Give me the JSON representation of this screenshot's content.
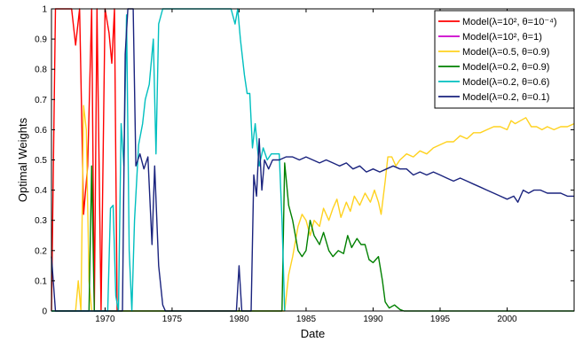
{
  "chart_data": {
    "type": "line",
    "xlabel": "Date",
    "ylabel": "Optimal Weights",
    "xlim": [
      1966,
      2005
    ],
    "ylim": [
      0,
      1
    ],
    "x_ticks": [
      1970,
      1975,
      1980,
      1985,
      1990,
      1995,
      2000
    ],
    "y_ticks": [
      0,
      0.1,
      0.2,
      0.3,
      0.4,
      0.5,
      0.6,
      0.7,
      0.8,
      0.9,
      1
    ],
    "grid": false,
    "legend_position": "top-right",
    "series": [
      {
        "name": "Model(λ=10², θ=10⁻⁴)",
        "color": "#ff0000",
        "points": [
          [
            1966,
            0
          ],
          [
            1966.3,
            1
          ],
          [
            1967.5,
            1
          ],
          [
            1967.8,
            0.88
          ],
          [
            1968.1,
            1
          ],
          [
            1968.4,
            0.32
          ],
          [
            1968.7,
            0.48
          ],
          [
            1969,
            1
          ],
          [
            1969.2,
            0
          ],
          [
            1969.4,
            1
          ],
          [
            1969.7,
            0
          ],
          [
            1970,
            1
          ],
          [
            1970.3,
            0.92
          ],
          [
            1970.5,
            0.82
          ],
          [
            1970.7,
            1
          ],
          [
            1970.9,
            0
          ]
        ]
      },
      {
        "name": "Model(λ=10², θ=1)",
        "color": "#cc00cc",
        "points": []
      },
      {
        "name": "Model(λ=0.5, θ=0.9)",
        "color": "#ffd21f",
        "points": [
          [
            1966,
            0
          ],
          [
            1967.8,
            0
          ],
          [
            1968,
            0.1
          ],
          [
            1968.2,
            0
          ],
          [
            1968.4,
            0.68
          ],
          [
            1968.6,
            0.6
          ],
          [
            1968.8,
            0.1
          ],
          [
            1969,
            0
          ],
          [
            1983.4,
            0
          ],
          [
            1983.7,
            0.12
          ],
          [
            1984,
            0.18
          ],
          [
            1984.4,
            0.28
          ],
          [
            1984.7,
            0.32
          ],
          [
            1985,
            0.3
          ],
          [
            1985.3,
            0.25
          ],
          [
            1985.6,
            0.3
          ],
          [
            1986,
            0.28
          ],
          [
            1986.3,
            0.34
          ],
          [
            1986.7,
            0.3
          ],
          [
            1987,
            0.34
          ],
          [
            1987.3,
            0.37
          ],
          [
            1987.6,
            0.31
          ],
          [
            1988,
            0.36
          ],
          [
            1988.3,
            0.33
          ],
          [
            1988.6,
            0.38
          ],
          [
            1989,
            0.35
          ],
          [
            1989.4,
            0.39
          ],
          [
            1989.8,
            0.36
          ],
          [
            1990.1,
            0.4
          ],
          [
            1990.4,
            0.36
          ],
          [
            1990.6,
            0.32
          ],
          [
            1990.9,
            0.43
          ],
          [
            1991.1,
            0.51
          ],
          [
            1991.4,
            0.51
          ],
          [
            1991.7,
            0.48
          ],
          [
            1992,
            0.5
          ],
          [
            1992.5,
            0.52
          ],
          [
            1993,
            0.51
          ],
          [
            1993.5,
            0.53
          ],
          [
            1994,
            0.52
          ],
          [
            1994.5,
            0.54
          ],
          [
            1995,
            0.55
          ],
          [
            1995.5,
            0.56
          ],
          [
            1996,
            0.56
          ],
          [
            1996.5,
            0.58
          ],
          [
            1997,
            0.57
          ],
          [
            1997.5,
            0.59
          ],
          [
            1998,
            0.59
          ],
          [
            1998.5,
            0.6
          ],
          [
            1999,
            0.61
          ],
          [
            1999.5,
            0.61
          ],
          [
            2000,
            0.6
          ],
          [
            2000.3,
            0.63
          ],
          [
            2000.6,
            0.62
          ],
          [
            2001,
            0.63
          ],
          [
            2001.4,
            0.64
          ],
          [
            2001.8,
            0.61
          ],
          [
            2002.2,
            0.61
          ],
          [
            2002.6,
            0.6
          ],
          [
            2003,
            0.61
          ],
          [
            2003.5,
            0.6
          ],
          [
            2004,
            0.61
          ],
          [
            2004.5,
            0.61
          ],
          [
            2005,
            0.62
          ]
        ]
      },
      {
        "name": "Model(λ=0.2, θ=0.9)",
        "color": "#008000",
        "points": [
          [
            1966,
            0
          ],
          [
            1968.8,
            0
          ],
          [
            1969,
            0.48
          ],
          [
            1969.2,
            0
          ],
          [
            1983.2,
            0
          ],
          [
            1983.4,
            0.49
          ],
          [
            1983.7,
            0.35
          ],
          [
            1984,
            0.3
          ],
          [
            1984.4,
            0.2
          ],
          [
            1984.7,
            0.18
          ],
          [
            1985,
            0.2
          ],
          [
            1985.3,
            0.3
          ],
          [
            1985.6,
            0.25
          ],
          [
            1986,
            0.22
          ],
          [
            1986.3,
            0.26
          ],
          [
            1986.7,
            0.2
          ],
          [
            1987,
            0.18
          ],
          [
            1987.4,
            0.2
          ],
          [
            1987.8,
            0.19
          ],
          [
            1988.1,
            0.25
          ],
          [
            1988.4,
            0.21
          ],
          [
            1988.8,
            0.24
          ],
          [
            1989.1,
            0.22
          ],
          [
            1989.4,
            0.22
          ],
          [
            1989.7,
            0.17
          ],
          [
            1990,
            0.16
          ],
          [
            1990.4,
            0.18
          ],
          [
            1990.7,
            0.1
          ],
          [
            1990.9,
            0.03
          ],
          [
            1991.2,
            0.01
          ],
          [
            1991.6,
            0.02
          ],
          [
            1992,
            0.005
          ],
          [
            1992.3,
            0
          ],
          [
            2005,
            0
          ]
        ]
      },
      {
        "name": "Model(λ=0.2, θ=0.6)",
        "color": "#00bfbf",
        "points": [
          [
            1966,
            0
          ],
          [
            1970.2,
            0
          ],
          [
            1970.4,
            0.34
          ],
          [
            1970.6,
            0.35
          ],
          [
            1970.8,
            0.05
          ],
          [
            1971,
            0
          ],
          [
            1971.2,
            0.62
          ],
          [
            1971.4,
            0.48
          ],
          [
            1971.6,
            0.98
          ],
          [
            1971.8,
            0.2
          ],
          [
            1972,
            0
          ],
          [
            1972.2,
            0.3
          ],
          [
            1972.5,
            0.55
          ],
          [
            1972.8,
            0.62
          ],
          [
            1973,
            0.7
          ],
          [
            1973.3,
            0.75
          ],
          [
            1973.6,
            0.9
          ],
          [
            1973.8,
            0.52
          ],
          [
            1974,
            0.95
          ],
          [
            1974.3,
            1
          ],
          [
            1979.4,
            1
          ],
          [
            1979.7,
            0.95
          ],
          [
            1979.9,
            1
          ],
          [
            1980.1,
            0.9
          ],
          [
            1980.4,
            0.78
          ],
          [
            1980.6,
            0.72
          ],
          [
            1980.8,
            0.72
          ],
          [
            1981,
            0.54
          ],
          [
            1981.2,
            0.62
          ],
          [
            1981.5,
            0.48
          ],
          [
            1981.8,
            0.54
          ],
          [
            1982.1,
            0.5
          ],
          [
            1982.4,
            0.52
          ],
          [
            1982.7,
            0.52
          ],
          [
            1983,
            0.52
          ],
          [
            1983.2,
            0.3
          ],
          [
            1983.4,
            0
          ]
        ]
      },
      {
        "name": "Model(λ=0.2, θ=0.1)",
        "color": "#1a237e",
        "points": [
          [
            1966,
            0.18
          ],
          [
            1966.3,
            0
          ],
          [
            1971.3,
            0
          ],
          [
            1971.5,
            0.85
          ],
          [
            1971.7,
            1
          ],
          [
            1972.1,
            1
          ],
          [
            1972.3,
            0.48
          ],
          [
            1972.6,
            0.52
          ],
          [
            1972.9,
            0.47
          ],
          [
            1973.2,
            0.51
          ],
          [
            1973.5,
            0.22
          ],
          [
            1973.7,
            0.48
          ],
          [
            1974,
            0.15
          ],
          [
            1974.3,
            0.02
          ],
          [
            1974.5,
            0
          ],
          [
            1979.8,
            0
          ],
          [
            1980,
            0.15
          ],
          [
            1980.2,
            0
          ],
          [
            1980.9,
            0
          ],
          [
            1981.1,
            0.45
          ],
          [
            1981.3,
            0.38
          ],
          [
            1981.5,
            0.57
          ],
          [
            1981.7,
            0.4
          ],
          [
            1981.9,
            0.5
          ],
          [
            1982.2,
            0.47
          ],
          [
            1982.5,
            0.5
          ],
          [
            1983,
            0.5
          ],
          [
            1983.5,
            0.51
          ],
          [
            1984,
            0.51
          ],
          [
            1984.5,
            0.5
          ],
          [
            1985,
            0.51
          ],
          [
            1985.5,
            0.5
          ],
          [
            1986,
            0.49
          ],
          [
            1986.5,
            0.5
          ],
          [
            1987,
            0.49
          ],
          [
            1987.5,
            0.48
          ],
          [
            1988,
            0.49
          ],
          [
            1988.5,
            0.47
          ],
          [
            1989,
            0.48
          ],
          [
            1989.5,
            0.46
          ],
          [
            1990,
            0.47
          ],
          [
            1990.5,
            0.46
          ],
          [
            1991,
            0.47
          ],
          [
            1991.5,
            0.48
          ],
          [
            1992,
            0.47
          ],
          [
            1992.5,
            0.47
          ],
          [
            1993,
            0.45
          ],
          [
            1993.5,
            0.46
          ],
          [
            1994,
            0.45
          ],
          [
            1994.5,
            0.46
          ],
          [
            1995,
            0.45
          ],
          [
            1995.5,
            0.44
          ],
          [
            1996,
            0.43
          ],
          [
            1996.5,
            0.44
          ],
          [
            1997,
            0.43
          ],
          [
            1997.5,
            0.42
          ],
          [
            1998,
            0.41
          ],
          [
            1998.5,
            0.4
          ],
          [
            1999,
            0.39
          ],
          [
            1999.5,
            0.38
          ],
          [
            2000,
            0.37
          ],
          [
            2000.5,
            0.38
          ],
          [
            2000.8,
            0.36
          ],
          [
            2001.2,
            0.4
          ],
          [
            2001.6,
            0.39
          ],
          [
            2002,
            0.4
          ],
          [
            2002.5,
            0.4
          ],
          [
            2003,
            0.39
          ],
          [
            2003.5,
            0.39
          ],
          [
            2004,
            0.39
          ],
          [
            2004.5,
            0.38
          ],
          [
            2005,
            0.38
          ]
        ]
      }
    ]
  }
}
